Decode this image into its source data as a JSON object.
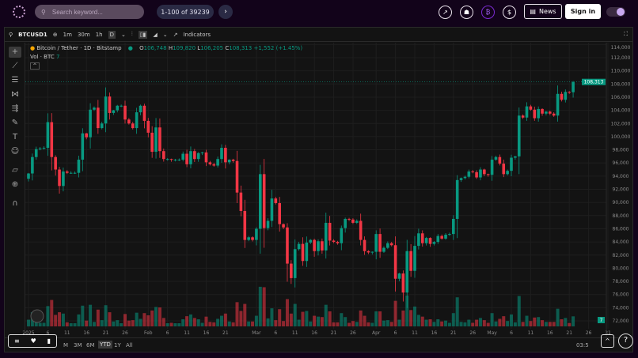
{
  "header": {
    "search_placeholder": "Search keyword...",
    "pager": "1-100 of 39239",
    "next": "›",
    "news": "News",
    "signin": "Sign in"
  },
  "toolbar": {
    "symbol": "BTCUSD1",
    "intervals": [
      "1m",
      "30m",
      "1h",
      "D"
    ],
    "indicators": "Indicators"
  },
  "legend": {
    "title": "Bitcoin / Tether · 1D · Bitstamp",
    "o_label": "O",
    "o": "106,748",
    "h_label": "H",
    "h": "109,820",
    "l_label": "L",
    "l": "106,205",
    "c_label": "C",
    "c": "108,313",
    "change": "+1,552 (+1.45%)",
    "vol_label": "Vol · BTC",
    "vol": "7"
  },
  "bottom": {
    "ranges": [
      "M",
      "3M",
      "6M",
      "YTD",
      "1Y",
      "All"
    ],
    "active": "YTD",
    "time": "03:5"
  },
  "colors": {
    "up": "#089981",
    "down": "#f23645"
  },
  "chart_data": {
    "type": "candlestick",
    "start_date": "2025-01-01",
    "ylim": [
      72000,
      114000
    ],
    "y_ticks": [
      72000,
      74000,
      76000,
      78000,
      80000,
      82000,
      84000,
      86000,
      88000,
      90000,
      92000,
      94000,
      96000,
      98000,
      100000,
      102000,
      104000,
      106000,
      108000,
      110000,
      112000,
      114000
    ],
    "y_tick_labels": [
      "72,000",
      "74,000",
      "76,000",
      "78,000",
      "80,000",
      "82,000",
      "84,000",
      "86,000",
      "88,000",
      "90,000",
      "92,000",
      "94,000",
      "96,000",
      "98,000",
      "100,000",
      "102,000",
      "104,000",
      "106,000",
      "108,000",
      "110,000",
      "112,000",
      "114,000"
    ],
    "last_price_label": "108,313",
    "last_volume_label": "7",
    "x_tick_labels": [
      "2025",
      "6",
      "11",
      "16",
      "21",
      "26",
      "Feb",
      "6",
      "11",
      "16",
      "21",
      "Mar",
      "6",
      "11",
      "16",
      "21",
      "26",
      "Apr",
      "6",
      "11",
      "16",
      "21",
      "26",
      "May",
      "6",
      "11",
      "16",
      "21",
      "26",
      "31"
    ],
    "x_tick_days": [
      0,
      5,
      10,
      15,
      20,
      25,
      31,
      36,
      41,
      46,
      51,
      59,
      64,
      69,
      74,
      79,
      84,
      90,
      95,
      100,
      105,
      110,
      115,
      120,
      125,
      130,
      135,
      140,
      145,
      150
    ],
    "close": [
      94400,
      96900,
      98100,
      98200,
      98300,
      102200,
      96900,
      95000,
      92500,
      94700,
      94500,
      94500,
      94500,
      96500,
      100500,
      99900,
      104100,
      104400,
      101300,
      102000,
      106100,
      103600,
      104000,
      104700,
      104700,
      102600,
      102000,
      101300,
      103700,
      104700,
      102400,
      100600,
      97700,
      101400,
      97800,
      96600,
      96600,
      96500,
      96500,
      96500,
      97400,
      95800,
      97800,
      96600,
      97500,
      97600,
      96100,
      95800,
      95600,
      96600,
      98300,
      96100,
      96500,
      96300,
      91500,
      88700,
      84300,
      84700,
      84300,
      86000,
      94300,
      86100,
      87200,
      90600,
      89900,
      86700,
      86200,
      80700,
      78500,
      82900,
      83700,
      81100,
      83900,
      84300,
      82600,
      84100,
      82700,
      86900,
      84200,
      84000,
      83800,
      86100,
      87500,
      87400,
      86900,
      87200,
      84300,
      82600,
      82400,
      82500,
      85200,
      82500,
      83100,
      83800,
      83500,
      78400,
      79200,
      76300,
      82600,
      79600,
      83400,
      85300,
      83800,
      84600,
      83700,
      84000,
      84900,
      84500,
      85100,
      85200,
      87500,
      93400,
      93700,
      93900,
      94700,
      94600,
      93800,
      95000,
      94300,
      94200,
      96500,
      96900,
      95900,
      94300,
      94800,
      96800,
      97000,
      103200,
      102900,
      104600,
      104100,
      102800,
      104200,
      103500,
      103800,
      103500,
      103200,
      106500,
      105600,
      106800,
      106748,
      108313
    ]
  }
}
